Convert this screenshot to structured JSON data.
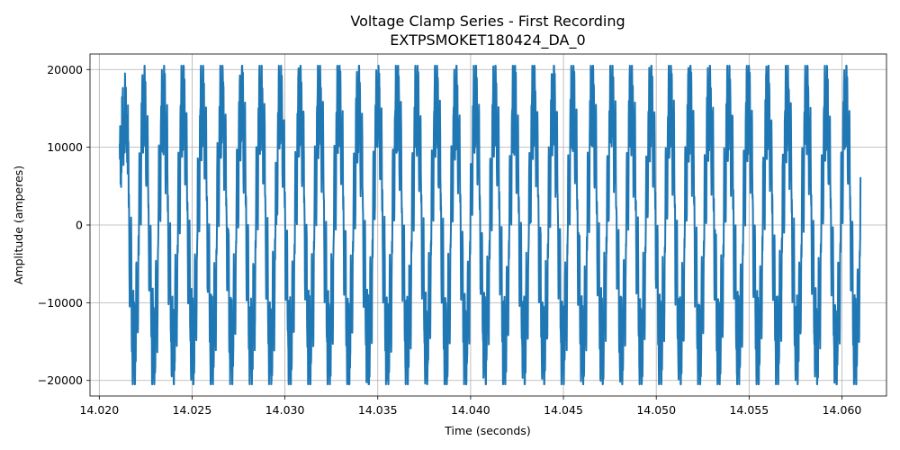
{
  "chart_data": {
    "type": "line",
    "title": "Voltage Clamp Series - First Recording",
    "subtitle": "EXTPSMOKET180424_DA_0",
    "xlabel": "Time (seconds)",
    "ylabel": "Amplitude (amperes)",
    "xlim": [
      14.0195,
      14.0624
    ],
    "ylim": [
      -22000,
      22000
    ],
    "x_ticks": [
      14.02,
      14.025,
      14.03,
      14.035,
      14.04,
      14.045,
      14.05,
      14.055,
      14.06
    ],
    "x_tick_labels": [
      "14.020",
      "14.025",
      "14.030",
      "14.035",
      "14.040",
      "14.045",
      "14.050",
      "14.055",
      "14.060"
    ],
    "y_ticks": [
      -20000,
      -10000,
      0,
      10000,
      20000
    ],
    "y_tick_labels": [
      "−20000",
      "−10000",
      "0",
      "10000",
      "20000"
    ],
    "grid": true,
    "series_color": "#1f77b4",
    "series": [
      {
        "x_start": 14.0211,
        "x_end": 14.061,
        "cycles": 38,
        "peak_max": 20500,
        "peak_min": -20500
      }
    ]
  }
}
